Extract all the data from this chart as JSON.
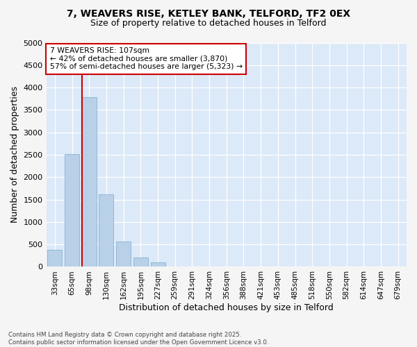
{
  "title_line1": "7, WEAVERS RISE, KETLEY BANK, TELFORD, TF2 0EX",
  "title_line2": "Size of property relative to detached houses in Telford",
  "xlabel": "Distribution of detached houses by size in Telford",
  "ylabel": "Number of detached properties",
  "categories": [
    "33sqm",
    "65sqm",
    "98sqm",
    "130sqm",
    "162sqm",
    "195sqm",
    "227sqm",
    "259sqm",
    "291sqm",
    "324sqm",
    "356sqm",
    "388sqm",
    "421sqm",
    "453sqm",
    "485sqm",
    "518sqm",
    "550sqm",
    "582sqm",
    "614sqm",
    "647sqm",
    "679sqm"
  ],
  "values": [
    380,
    2520,
    3780,
    1620,
    560,
    210,
    100,
    0,
    0,
    0,
    0,
    0,
    0,
    0,
    0,
    0,
    0,
    0,
    0,
    0,
    0
  ],
  "bar_color": "#b8d0e8",
  "bar_edge_color": "#7aaaca",
  "vline_color": "#cc0000",
  "vline_x_index": 1.575,
  "annotation_text": "7 WEAVERS RISE: 107sqm\n← 42% of detached houses are smaller (3,870)\n57% of semi-detached houses are larger (5,323) →",
  "annotation_box_facecolor": "#ffffff",
  "annotation_box_edgecolor": "#cc0000",
  "ylim": [
    0,
    5000
  ],
  "yticks": [
    0,
    500,
    1000,
    1500,
    2000,
    2500,
    3000,
    3500,
    4000,
    4500,
    5000
  ],
  "background_color": "#dce9f8",
  "fig_facecolor": "#f5f5f5",
  "footer_line1": "Contains HM Land Registry data © Crown copyright and database right 2025.",
  "footer_line2": "Contains public sector information licensed under the Open Government Licence v3.0.",
  "fig_width": 6.0,
  "fig_height": 5.0,
  "dpi": 100
}
